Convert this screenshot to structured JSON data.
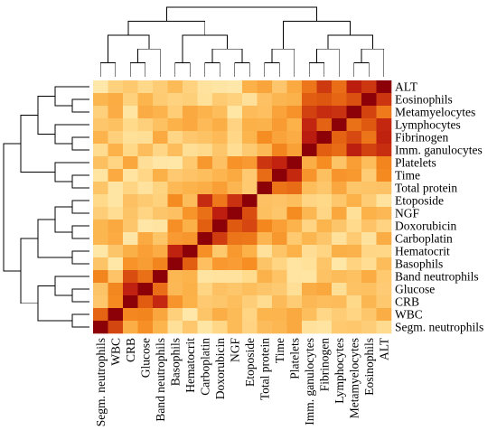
{
  "chart_data": {
    "type": "heatmap",
    "title": "",
    "xlabel": "",
    "ylabel": "",
    "row_labels": [
      "ALT",
      "Eosinophils",
      "Metamyelocytes",
      "Lymphocytes",
      "Fibrinogen",
      "Imm. ganulocytes",
      "Platelets",
      "Time",
      "Total protein",
      "Etoposide",
      "NGF",
      "Doxorubicin",
      "Carboplatin",
      "Hematocrit",
      "Basophils",
      "Band neutrophils",
      "Glucose",
      "CRB",
      "WBC",
      "Segm. neutrophils"
    ],
    "column_labels": [
      "Segm. neutrophils",
      "WBC",
      "CRB",
      "Glucose",
      "Band neutrophils",
      "Basophils",
      "Hematocrit",
      "Carboplatin",
      "Doxorubicin",
      "NGF",
      "Etoposide",
      "Total protein",
      "Time",
      "Platelets",
      "Imm. ganulocytes",
      "Fibrinogen",
      "Lymphocytes",
      "Metamyelocytes",
      "Eosinophils",
      "ALT"
    ],
    "value_range": [
      0,
      1
    ],
    "color_scale": [
      "#fff6c8",
      "#ffd98a",
      "#fcb24a",
      "#f58a20",
      "#e05a10",
      "#bf2010",
      "#8c0008"
    ],
    "dendrogram_top": true,
    "dendrogram_left": true
  }
}
